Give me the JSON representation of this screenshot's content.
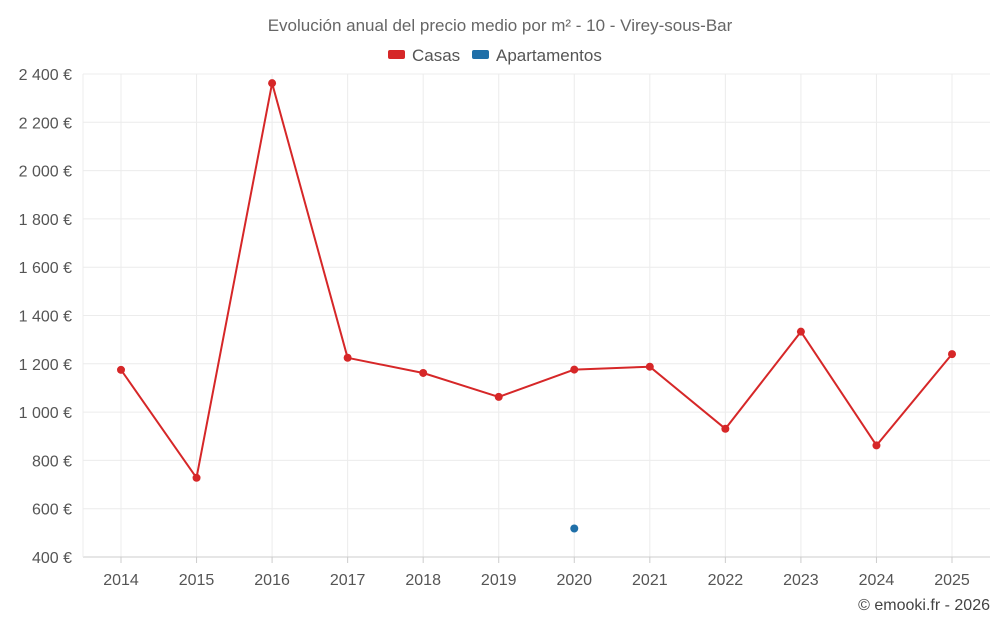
{
  "chart_data": {
    "type": "line",
    "title": "Evolución anual del precio medio por m² - 10 - Virey-sous-Bar",
    "x": [
      "2014",
      "2015",
      "2016",
      "2017",
      "2018",
      "2019",
      "2020",
      "2021",
      "2022",
      "2023",
      "2024",
      "2025"
    ],
    "ylim": [
      400,
      2400
    ],
    "yticks": [
      400,
      600,
      800,
      1000,
      1200,
      1400,
      1600,
      1800,
      2000,
      2200,
      2400
    ],
    "ytick_labels": [
      "400 €",
      "600 €",
      "800 €",
      "1 000 €",
      "1 200 €",
      "1 400 €",
      "1 600 €",
      "1 800 €",
      "2 000 €",
      "2 200 €",
      "2 400 €"
    ],
    "grid": true,
    "legend_position": "top-center",
    "series": [
      {
        "name": "Casas",
        "color": "#d62728",
        "values": [
          1175,
          728,
          2362,
          1225,
          1162,
          1063,
          1176,
          1188,
          931,
          1333,
          862,
          1240
        ]
      },
      {
        "name": "Apartamentos",
        "color": "#1f6fa8",
        "values": [
          null,
          null,
          null,
          null,
          null,
          null,
          518,
          null,
          null,
          null,
          null,
          null
        ]
      }
    ],
    "credit": "© emooki.fr - 2026"
  }
}
